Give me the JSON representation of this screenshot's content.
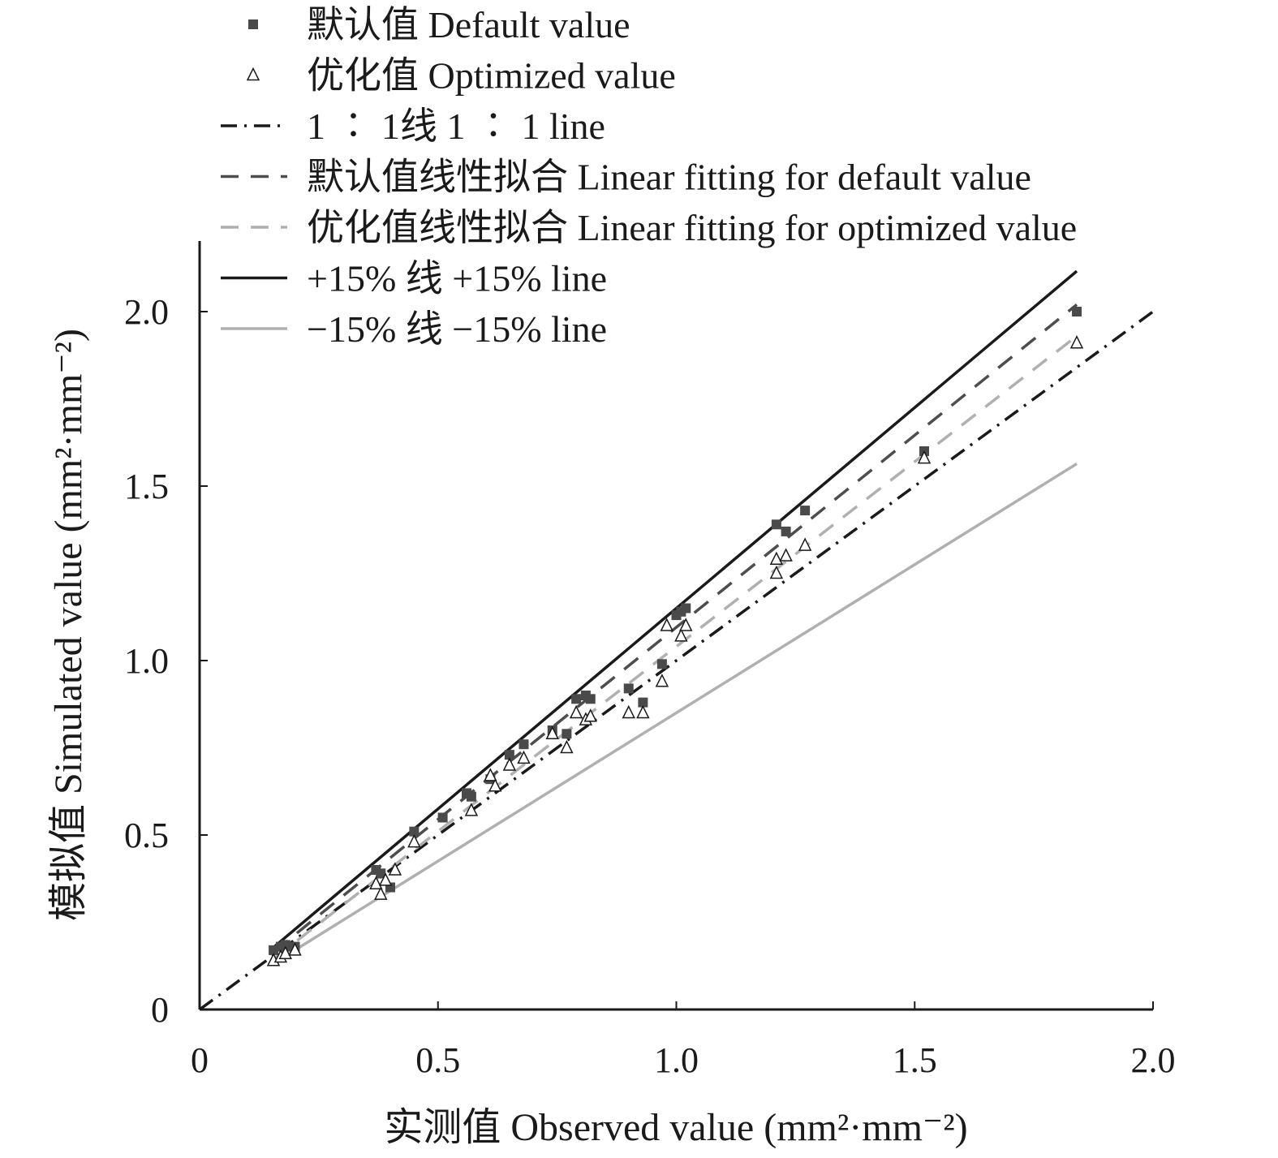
{
  "chart_data": {
    "type": "scatter",
    "xlabel": "实测值 Observed value (mm²·mm⁻²)",
    "ylabel": "模拟值 Simulated value (mm²·mm⁻²)",
    "xlim": [
      0,
      2.0
    ],
    "ylim": [
      0,
      2.0
    ],
    "x_ticks": [
      "0",
      "0.5",
      "1.0",
      "1.5",
      "2.0"
    ],
    "y_ticks": [
      "0",
      "0.5",
      "1.0",
      "1.5",
      "2.0"
    ],
    "grid": false,
    "legend_position": "top-left",
    "series": [
      {
        "name": "默认值 Default value",
        "kind": "points",
        "marker": "filled-square",
        "color": "#4a4a4a",
        "points": [
          [
            0.155,
            0.17
          ],
          [
            0.17,
            0.18
          ],
          [
            0.18,
            0.185
          ],
          [
            0.19,
            0.18
          ],
          [
            0.2,
            0.18
          ],
          [
            0.37,
            0.4
          ],
          [
            0.38,
            0.39
          ],
          [
            0.4,
            0.35
          ],
          [
            0.45,
            0.51
          ],
          [
            0.51,
            0.55
          ],
          [
            0.56,
            0.62
          ],
          [
            0.57,
            0.61
          ],
          [
            0.61,
            0.66
          ],
          [
            0.65,
            0.73
          ],
          [
            0.68,
            0.76
          ],
          [
            0.74,
            0.8
          ],
          [
            0.77,
            0.79
          ],
          [
            0.79,
            0.89
          ],
          [
            0.81,
            0.9
          ],
          [
            0.82,
            0.89
          ],
          [
            0.9,
            0.92
          ],
          [
            0.93,
            0.88
          ],
          [
            0.97,
            0.99
          ],
          [
            1.0,
            1.13
          ],
          [
            1.01,
            1.14
          ],
          [
            1.02,
            1.15
          ],
          [
            1.21,
            1.39
          ],
          [
            1.23,
            1.37
          ],
          [
            1.27,
            1.43
          ],
          [
            1.52,
            1.6
          ],
          [
            1.84,
            2.0
          ]
        ]
      },
      {
        "name": "优化值 Optimized value",
        "kind": "points",
        "marker": "open-triangle",
        "color": "#1a1a1a",
        "points": [
          [
            0.155,
            0.14
          ],
          [
            0.17,
            0.15
          ],
          [
            0.18,
            0.16
          ],
          [
            0.2,
            0.17
          ],
          [
            0.37,
            0.36
          ],
          [
            0.38,
            0.33
          ],
          [
            0.39,
            0.37
          ],
          [
            0.41,
            0.4
          ],
          [
            0.45,
            0.48
          ],
          [
            0.57,
            0.57
          ],
          [
            0.61,
            0.67
          ],
          [
            0.62,
            0.64
          ],
          [
            0.65,
            0.7
          ],
          [
            0.68,
            0.72
          ],
          [
            0.74,
            0.79
          ],
          [
            0.77,
            0.75
          ],
          [
            0.79,
            0.85
          ],
          [
            0.81,
            0.83
          ],
          [
            0.82,
            0.84
          ],
          [
            0.9,
            0.85
          ],
          [
            0.93,
            0.85
          ],
          [
            0.97,
            0.94
          ],
          [
            0.98,
            1.1
          ],
          [
            1.01,
            1.07
          ],
          [
            1.02,
            1.1
          ],
          [
            1.21,
            1.25
          ],
          [
            1.21,
            1.29
          ],
          [
            1.23,
            1.3
          ],
          [
            1.27,
            1.33
          ],
          [
            1.52,
            1.58
          ],
          [
            1.84,
            1.91
          ]
        ]
      },
      {
        "name": "1 ∶ 1线 1 ∶ 1 line",
        "kind": "line",
        "style": "dashdot",
        "color": "#1a1a1a",
        "x": [
          0,
          2.0
        ],
        "y": [
          0,
          2.0
        ]
      },
      {
        "name": "默认值线性拟合 Linear fitting for default value",
        "kind": "line",
        "style": "dashed",
        "color": "#4d4d4d",
        "x": [
          0.155,
          1.84
        ],
        "y": [
          0.165,
          2.02
        ]
      },
      {
        "name": "优化值线性拟合 Linear fitting for optimized value",
        "kind": "line",
        "style": "dashed",
        "color": "#b0b0b0",
        "x": [
          0.155,
          1.84
        ],
        "y": [
          0.145,
          1.93
        ]
      },
      {
        "name": "+15% 线 +15% line",
        "kind": "line",
        "style": "solid",
        "color": "#1a1a1a",
        "x": [
          0.155,
          1.84
        ],
        "y": [
          0.178,
          2.116
        ]
      },
      {
        "name": "−15% 线 −15% line",
        "kind": "line",
        "style": "solid",
        "color": "#b0b0b0",
        "x": [
          0.155,
          1.84
        ],
        "y": [
          0.132,
          1.564
        ]
      }
    ]
  }
}
